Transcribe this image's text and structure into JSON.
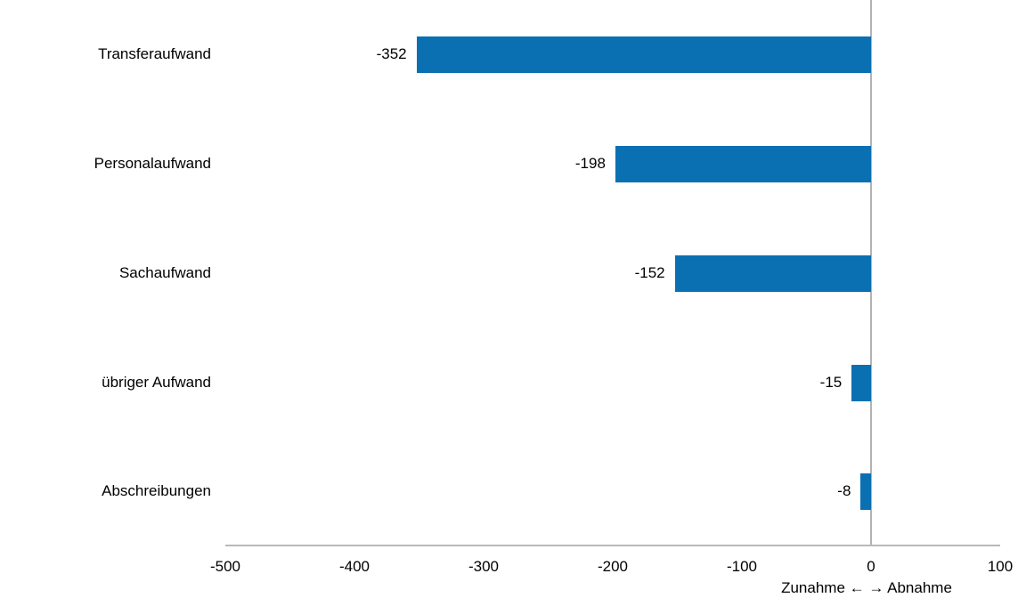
{
  "chart_data": {
    "type": "bar",
    "orientation": "horizontal",
    "categories": [
      "Transferaufwand",
      "Personalaufwand",
      "Sachaufwand",
      "übriger Aufwand",
      "Abschreibungen"
    ],
    "values": [
      -352,
      -198,
      -152,
      -15,
      -8
    ],
    "value_labels": [
      "-352",
      "-198",
      "-152",
      "-15",
      "-8"
    ],
    "title": "",
    "xlabel": "Zunahme ← → Abnahme",
    "ylabel": "",
    "xlim": [
      -500,
      100
    ],
    "x_ticks": [
      -500,
      -400,
      -300,
      -200,
      -100,
      0,
      100
    ],
    "x_tick_labels": [
      "-500",
      "-400",
      "-300",
      "-200",
      "-100",
      "0",
      "100"
    ],
    "grid": false,
    "legend": false,
    "zero_line": true,
    "bar_color": "#0b70b2",
    "axis_color": "#b3b3b3",
    "text_color": "#000000",
    "background_color": "#ffffff"
  }
}
